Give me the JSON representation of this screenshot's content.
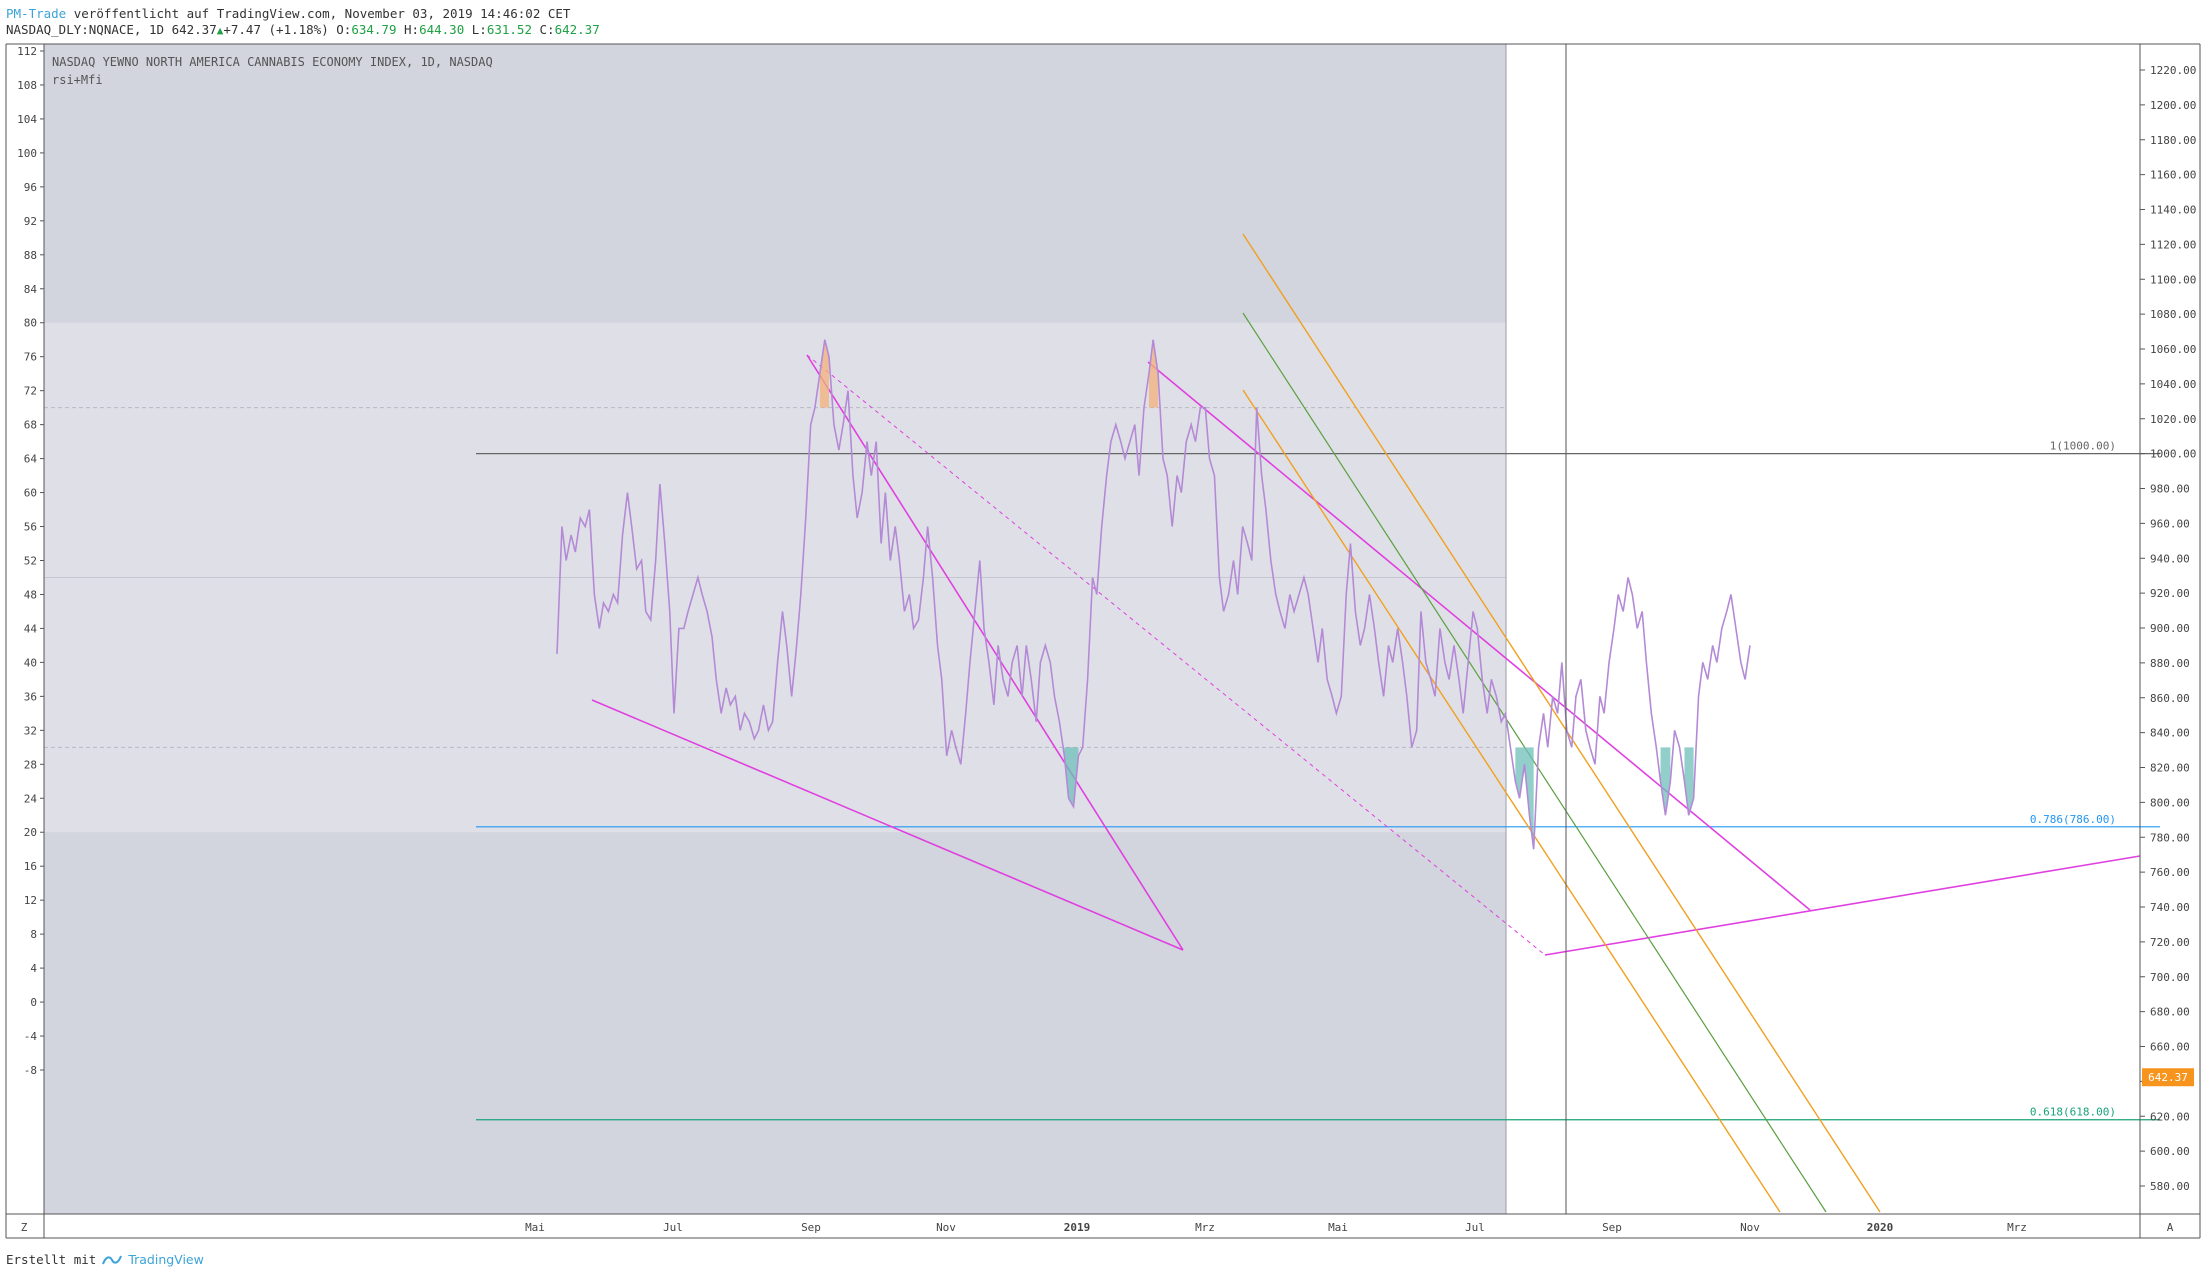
{
  "header": {
    "author": "PM-Trade",
    "published_text": "veröffentlicht auf TradingView.com, November 03, 2019 14:46:02 CET",
    "symbol": "NASDAQ_DLY:NQNACE, 1D",
    "last": "642.37",
    "change": "+7.47 (+1.18%)",
    "open_label": "O:",
    "open": "634.79",
    "high_label": "H:",
    "high": "644.30",
    "low_label": "L:",
    "low": "631.52",
    "close_label": "C:",
    "close": "642.37"
  },
  "legend": {
    "title": "NASDAQ YEWNO NORTH AMERICA CANNABIS ECONOMY INDEX, 1D, NASDAQ",
    "indicator": "rsi+Mfi"
  },
  "footer": {
    "prefix": "Erstellt mit",
    "brand": "TradingView"
  },
  "chart_data": {
    "type": "line",
    "left_axis": {
      "ticks": [
        "112",
        "108",
        "104",
        "100",
        "96",
        "92",
        "88",
        "84",
        "80",
        "76",
        "72",
        "68",
        "64",
        "60",
        "56",
        "52",
        "48",
        "44",
        "40",
        "36",
        "32",
        "28",
        "24",
        "20",
        "16",
        "12",
        "8",
        "4",
        "0",
        "-4",
        "-8"
      ]
    },
    "right_axis": {
      "ticks": [
        "1220.00",
        "1200.00",
        "1180.00",
        "1160.00",
        "1140.00",
        "1120.00",
        "1100.00",
        "1080.00",
        "1060.00",
        "1040.00",
        "1020.00",
        "1000.00",
        "980.00",
        "960.00",
        "940.00",
        "920.00",
        "900.00",
        "880.00",
        "860.00",
        "840.00",
        "820.00",
        "800.00",
        "780.00",
        "760.00",
        "740.00",
        "720.00",
        "700.00",
        "680.00",
        "660.00",
        "640.00",
        "620.00",
        "600.00",
        "580.00"
      ],
      "current_price_label": "642.37",
      "current_price": 642.37,
      "current_price_color": "#f7941d"
    },
    "x_axis": {
      "ticks": [
        "Mai",
        "Jul",
        "Sep",
        "Nov",
        "2019",
        "Mrz",
        "Mai",
        "Jul",
        "Sep",
        "Nov",
        "2020",
        "Mrz"
      ],
      "corner_left": "Z",
      "corner_right": "A"
    },
    "fib_levels": [
      {
        "label": "1(1000.00)",
        "price": 1000.0,
        "color": "#666666"
      },
      {
        "label": "0.786(786.00)",
        "price": 786.0,
        "color": "#2196f3"
      },
      {
        "label": "0.618(618.00)",
        "price": 618.0,
        "color": "#1aa37a"
      }
    ],
    "bands": {
      "upper": 80,
      "lower": 20,
      "overbought": 70,
      "oversold": 30
    },
    "series": [
      {
        "color": "#b48ad6",
        "points": [
          [
            0.0,
            41
          ],
          [
            0.7,
            56
          ],
          [
            1.3,
            52
          ],
          [
            2.0,
            55
          ],
          [
            2.6,
            53
          ],
          [
            3.3,
            57
          ],
          [
            4.0,
            56
          ],
          [
            4.6,
            58
          ],
          [
            5.3,
            48
          ],
          [
            6.0,
            44
          ],
          [
            6.6,
            47
          ],
          [
            7.3,
            46
          ],
          [
            8.0,
            48
          ],
          [
            8.6,
            47
          ],
          [
            9.3,
            55
          ],
          [
            10.0,
            60
          ],
          [
            10.6,
            56
          ],
          [
            11.3,
            51
          ],
          [
            12.0,
            52
          ],
          [
            12.6,
            46
          ],
          [
            13.3,
            45
          ],
          [
            14.0,
            52
          ],
          [
            14.6,
            61
          ],
          [
            15.3,
            54
          ],
          [
            16.0,
            46
          ],
          [
            16.6,
            34
          ],
          [
            17.3,
            44
          ],
          [
            18.0,
            44
          ],
          [
            18.6,
            46
          ],
          [
            19.3,
            48
          ],
          [
            20.0,
            50
          ],
          [
            20.6,
            48
          ],
          [
            21.3,
            46
          ],
          [
            22.0,
            43
          ],
          [
            22.6,
            38
          ],
          [
            23.3,
            34
          ],
          [
            24.0,
            37
          ],
          [
            24.6,
            35
          ],
          [
            25.3,
            36
          ],
          [
            26.0,
            32
          ],
          [
            26.6,
            34
          ],
          [
            27.3,
            33
          ],
          [
            28.0,
            31
          ],
          [
            28.6,
            32
          ],
          [
            29.3,
            35
          ],
          [
            30.0,
            32
          ],
          [
            30.6,
            33
          ],
          [
            31.3,
            40
          ],
          [
            32.0,
            46
          ],
          [
            32.6,
            42
          ],
          [
            33.3,
            36
          ],
          [
            34.0,
            42
          ],
          [
            34.6,
            48
          ],
          [
            35.3,
            57
          ],
          [
            36.0,
            68
          ],
          [
            36.6,
            70
          ],
          [
            37.3,
            74
          ],
          [
            38.0,
            78
          ],
          [
            38.6,
            76
          ],
          [
            39.3,
            68
          ],
          [
            40.0,
            65
          ],
          [
            40.6,
            68
          ],
          [
            41.3,
            72
          ],
          [
            42.0,
            62
          ],
          [
            42.6,
            57
          ],
          [
            43.3,
            60
          ],
          [
            44.0,
            66
          ],
          [
            44.6,
            62
          ],
          [
            45.3,
            66
          ],
          [
            46.0,
            54
          ],
          [
            46.6,
            60
          ],
          [
            47.3,
            52
          ],
          [
            48.0,
            56
          ],
          [
            48.6,
            52
          ],
          [
            49.3,
            46
          ],
          [
            50.0,
            48
          ],
          [
            50.6,
            44
          ],
          [
            51.3,
            45
          ],
          [
            52.0,
            50
          ],
          [
            52.6,
            56
          ],
          [
            53.3,
            50
          ],
          [
            54.0,
            42
          ],
          [
            54.6,
            38
          ],
          [
            55.3,
            29
          ],
          [
            56.0,
            32
          ],
          [
            56.6,
            30
          ],
          [
            57.3,
            28
          ],
          [
            58.0,
            34
          ],
          [
            58.6,
            40
          ],
          [
            59.3,
            46
          ],
          [
            60.0,
            52
          ],
          [
            60.6,
            44
          ],
          [
            61.3,
            40
          ],
          [
            62.0,
            35
          ],
          [
            62.6,
            42
          ],
          [
            63.3,
            38
          ],
          [
            64.0,
            36
          ],
          [
            64.6,
            40
          ],
          [
            65.3,
            42
          ],
          [
            66.0,
            36
          ],
          [
            66.6,
            42
          ],
          [
            67.3,
            38
          ],
          [
            68.0,
            33
          ],
          [
            68.6,
            40
          ],
          [
            69.3,
            42
          ],
          [
            70.0,
            40
          ],
          [
            70.6,
            36
          ],
          [
            71.3,
            33
          ],
          [
            72.0,
            29
          ],
          [
            72.6,
            24
          ],
          [
            73.3,
            23
          ],
          [
            74.0,
            29
          ],
          [
            74.6,
            30
          ],
          [
            75.3,
            38
          ],
          [
            76.0,
            50
          ],
          [
            76.6,
            48
          ],
          [
            77.3,
            56
          ],
          [
            78.0,
            62
          ],
          [
            78.6,
            66
          ],
          [
            79.3,
            68
          ],
          [
            80.0,
            66
          ],
          [
            80.6,
            64
          ],
          [
            81.3,
            66
          ],
          [
            82.0,
            68
          ],
          [
            82.6,
            62
          ],
          [
            83.3,
            70
          ],
          [
            84.0,
            74
          ],
          [
            84.6,
            78
          ],
          [
            85.3,
            74
          ],
          [
            86.0,
            64
          ],
          [
            86.6,
            62
          ],
          [
            87.3,
            56
          ],
          [
            88.0,
            62
          ],
          [
            88.6,
            60
          ],
          [
            89.3,
            66
          ],
          [
            90.0,
            68
          ],
          [
            90.6,
            66
          ],
          [
            91.3,
            70
          ],
          [
            92.0,
            70
          ],
          [
            92.6,
            64
          ],
          [
            93.3,
            62
          ],
          [
            94.0,
            50
          ],
          [
            94.6,
            46
          ],
          [
            95.3,
            48
          ],
          [
            96.0,
            52
          ],
          [
            96.6,
            48
          ],
          [
            97.3,
            56
          ],
          [
            98.0,
            54
          ],
          [
            98.6,
            52
          ],
          [
            99.3,
            70
          ],
          [
            100.0,
            62
          ],
          [
            100.6,
            58
          ],
          [
            101.3,
            52
          ],
          [
            102.0,
            48
          ],
          [
            102.6,
            46
          ],
          [
            103.3,
            44
          ],
          [
            104.0,
            48
          ],
          [
            104.6,
            46
          ],
          [
            105.3,
            48
          ],
          [
            106.0,
            50
          ],
          [
            106.6,
            48
          ],
          [
            107.3,
            44
          ],
          [
            108.0,
            40
          ],
          [
            108.6,
            44
          ],
          [
            109.3,
            38
          ],
          [
            110.0,
            36
          ],
          [
            110.6,
            34
          ],
          [
            111.3,
            36
          ],
          [
            112.0,
            48
          ],
          [
            112.6,
            54
          ],
          [
            113.3,
            46
          ],
          [
            114.0,
            42
          ],
          [
            114.6,
            44
          ],
          [
            115.3,
            48
          ],
          [
            116.0,
            44
          ],
          [
            116.6,
            40
          ],
          [
            117.3,
            36
          ],
          [
            118.0,
            42
          ],
          [
            118.6,
            40
          ],
          [
            119.3,
            44
          ],
          [
            120.0,
            40
          ],
          [
            120.6,
            36
          ],
          [
            121.3,
            30
          ],
          [
            122.0,
            32
          ],
          [
            122.6,
            46
          ],
          [
            123.3,
            40
          ],
          [
            124.0,
            38
          ],
          [
            124.6,
            36
          ],
          [
            125.3,
            44
          ],
          [
            126.0,
            40
          ],
          [
            126.6,
            38
          ],
          [
            127.3,
            42
          ],
          [
            128.0,
            38
          ],
          [
            128.6,
            34
          ],
          [
            129.3,
            40
          ],
          [
            130.0,
            46
          ],
          [
            130.6,
            44
          ],
          [
            131.3,
            38
          ],
          [
            132.0,
            34
          ],
          [
            132.6,
            38
          ],
          [
            133.3,
            36
          ],
          [
            134.0,
            33
          ],
          [
            134.6,
            34
          ],
          [
            135.3,
            30
          ],
          [
            136.0,
            26
          ],
          [
            136.6,
            24
          ],
          [
            137.3,
            28
          ],
          [
            138.0,
            22
          ],
          [
            138.6,
            18
          ],
          [
            139.3,
            30
          ],
          [
            140.0,
            34
          ],
          [
            140.6,
            30
          ],
          [
            141.3,
            36
          ],
          [
            142.0,
            34
          ],
          [
            142.6,
            40
          ],
          [
            143.3,
            32
          ],
          [
            144.0,
            30
          ],
          [
            144.6,
            36
          ],
          [
            145.3,
            38
          ],
          [
            146.0,
            32
          ],
          [
            146.6,
            30
          ],
          [
            147.3,
            28
          ],
          [
            148.0,
            36
          ],
          [
            148.6,
            34
          ],
          [
            149.3,
            40
          ],
          [
            150.0,
            44
          ],
          [
            150.6,
            48
          ],
          [
            151.3,
            46
          ],
          [
            152.0,
            50
          ],
          [
            152.6,
            48
          ],
          [
            153.3,
            44
          ],
          [
            154.0,
            46
          ],
          [
            154.6,
            40
          ],
          [
            155.3,
            34
          ],
          [
            156.0,
            30
          ],
          [
            156.6,
            26
          ],
          [
            157.3,
            22
          ],
          [
            158.0,
            26
          ],
          [
            158.6,
            32
          ],
          [
            159.3,
            30
          ],
          [
            160.0,
            26
          ],
          [
            160.6,
            22
          ],
          [
            161.3,
            24
          ],
          [
            162.0,
            36
          ],
          [
            162.6,
            40
          ],
          [
            163.3,
            38
          ],
          [
            164.0,
            42
          ],
          [
            164.6,
            40
          ],
          [
            165.3,
            44
          ],
          [
            166.0,
            46
          ],
          [
            166.6,
            48
          ],
          [
            167.3,
            44
          ],
          [
            168.0,
            40
          ],
          [
            168.6,
            38
          ],
          [
            169.3,
            42
          ]
        ]
      }
    ],
    "annotations": [
      "1(1000.00)",
      "0.786(786.00)",
      "0.618(618.00)"
    ]
  }
}
